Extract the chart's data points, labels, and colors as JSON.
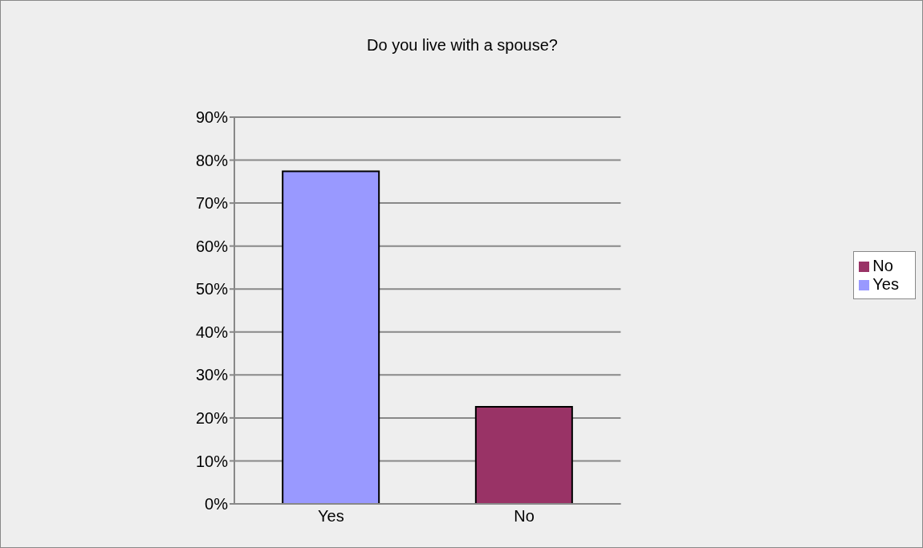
{
  "chart_data": {
    "type": "bar",
    "title": "Do you live with a spouse?",
    "categories": [
      "Yes",
      "No"
    ],
    "series": [
      {
        "name": "Yes",
        "color": "#9999ff",
        "values": [
          77.4,
          null
        ]
      },
      {
        "name": "No",
        "color": "#993366",
        "values": [
          null,
          22.6
        ]
      }
    ],
    "stacked": true,
    "ylim": [
      0,
      90
    ],
    "yticks": [
      {
        "value": 0,
        "label": "0%"
      },
      {
        "value": 10,
        "label": "10%"
      },
      {
        "value": 20,
        "label": "20%"
      },
      {
        "value": 30,
        "label": "30%"
      },
      {
        "value": 40,
        "label": "40%"
      },
      {
        "value": 50,
        "label": "50%"
      },
      {
        "value": 60,
        "label": "60%"
      },
      {
        "value": 70,
        "label": "70%"
      },
      {
        "value": 80,
        "label": "80%"
      },
      {
        "value": 90,
        "label": "90%"
      }
    ],
    "grid": "y",
    "legend": "right"
  }
}
